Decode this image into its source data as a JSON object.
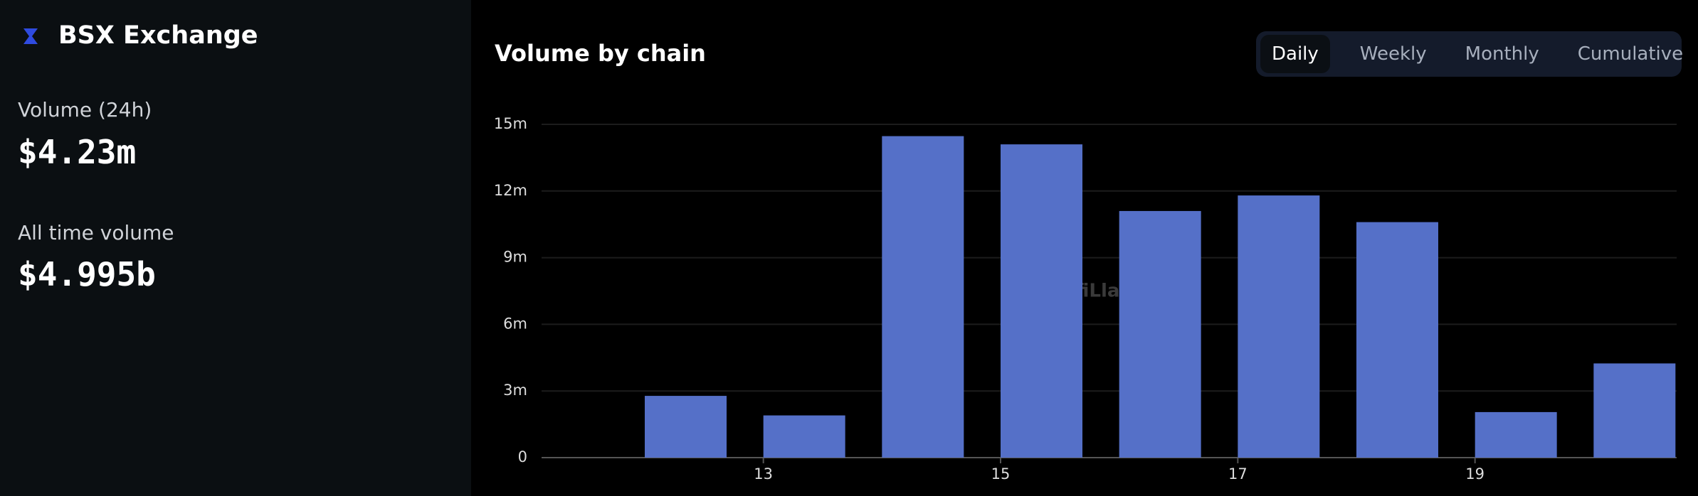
{
  "sidebar": {
    "name": "BSX Exchange",
    "volume_label": "Volume (24h)",
    "volume": "$4.23m",
    "all_time_label": "All time volume",
    "all_time": "$4.995b"
  },
  "tabs": [
    "Daily",
    "Weekly",
    "Monthly",
    "Cumulative"
  ],
  "chart_data": {
    "type": "bar",
    "title": "Volume by chain",
    "watermark": "DefiLlama",
    "x": [
      12,
      13,
      14,
      15,
      16,
      17,
      18,
      19,
      20
    ],
    "values": [
      2.78,
      1.9,
      14.47,
      14.1,
      11.1,
      11.8,
      10.6,
      2.05,
      4.24
    ],
    "color": "#5570c8",
    "xlim": [
      11.13,
      20.7
    ],
    "xticks": [
      13,
      15,
      17,
      19
    ],
    "ylim": [
      0,
      15
    ],
    "yticks": [
      0,
      {
        "value": 3,
        "label": "3m"
      },
      {
        "value": 6,
        "label": "6m"
      },
      {
        "value": 9,
        "label": "9m"
      },
      {
        "value": 12,
        "label": "12m"
      },
      {
        "value": 15,
        "label": "15m"
      }
    ],
    "grid": true
  }
}
